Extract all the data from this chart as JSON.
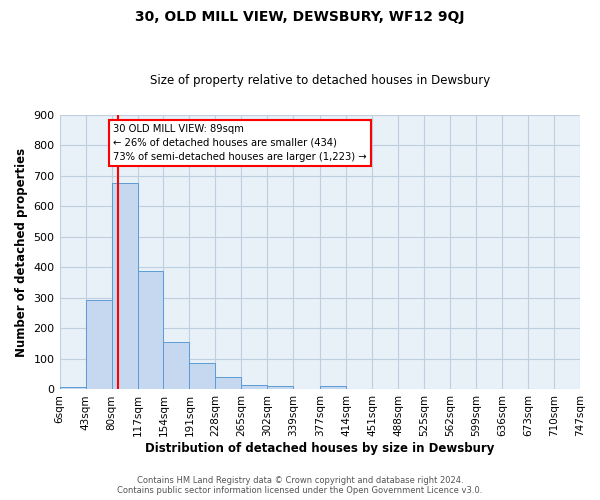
{
  "title": "30, OLD MILL VIEW, DEWSBURY, WF12 9QJ",
  "subtitle": "Size of property relative to detached houses in Dewsbury",
  "xlabel": "Distribution of detached houses by size in Dewsbury",
  "ylabel": "Number of detached properties",
  "bar_color": "#c5d8f0",
  "bar_edge_color": "#5b9bd5",
  "grid_color": "#c0cfe0",
  "bg_color": "#e8f0f8",
  "bin_labels": [
    "6sqm",
    "43sqm",
    "80sqm",
    "117sqm",
    "154sqm",
    "191sqm",
    "228sqm",
    "265sqm",
    "302sqm",
    "339sqm",
    "377sqm",
    "414sqm",
    "451sqm",
    "488sqm",
    "525sqm",
    "562sqm",
    "599sqm",
    "636sqm",
    "673sqm",
    "710sqm",
    "747sqm"
  ],
  "bar_values": [
    8,
    293,
    675,
    388,
    155,
    85,
    40,
    15,
    12,
    0,
    10,
    0,
    0,
    0,
    0,
    0,
    0,
    0,
    0,
    0
  ],
  "bin_edges": [
    6,
    43,
    80,
    117,
    154,
    191,
    228,
    265,
    302,
    339,
    377,
    414,
    451,
    488,
    525,
    562,
    599,
    636,
    673,
    710,
    747
  ],
  "ylim": [
    0,
    900
  ],
  "yticks": [
    0,
    100,
    200,
    300,
    400,
    500,
    600,
    700,
    800,
    900
  ],
  "property_size": 89,
  "annotation_title": "30 OLD MILL VIEW: 89sqm",
  "annotation_line1": "← 26% of detached houses are smaller (434)",
  "annotation_line2": "73% of semi-detached houses are larger (1,223) →",
  "vline_x": 89,
  "footer_line1": "Contains HM Land Registry data © Crown copyright and database right 2024.",
  "footer_line2": "Contains public sector information licensed under the Open Government Licence v3.0."
}
